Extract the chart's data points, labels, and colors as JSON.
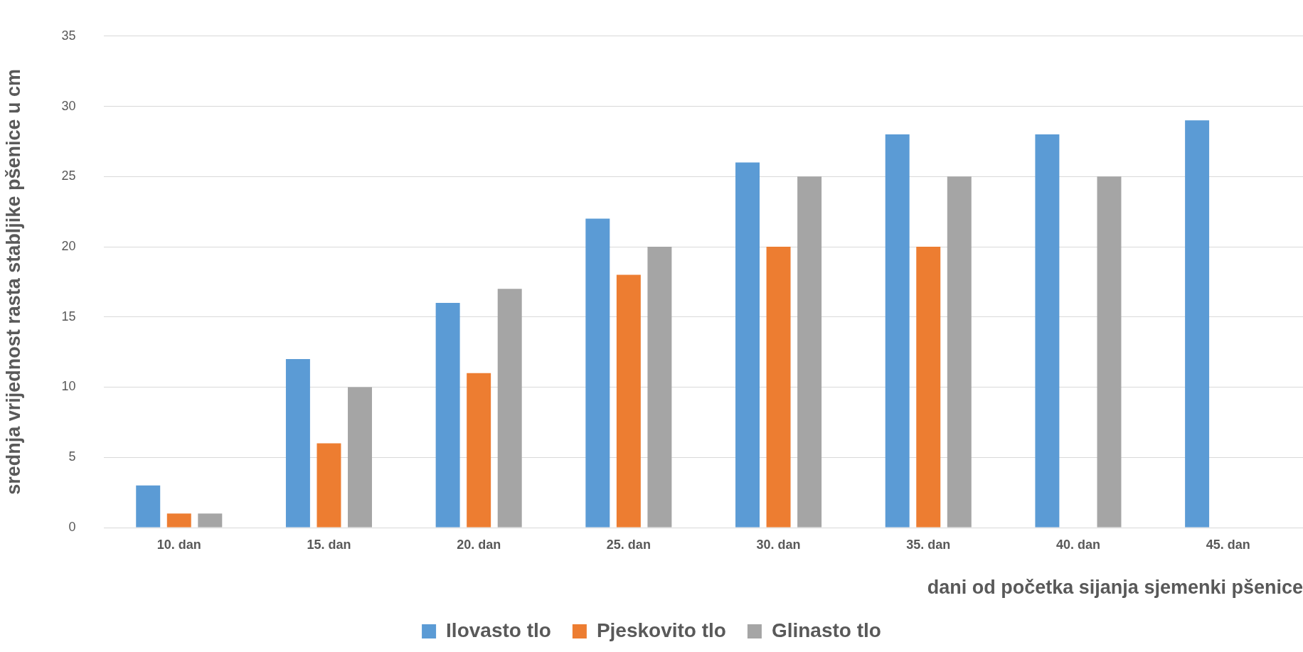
{
  "chart_data": {
    "type": "bar",
    "xlabel": "dani od početka sijanja sjemenki pšenice",
    "ylabel": "srednja vrijednost rasta stabljike pšenice u cm",
    "categories": [
      "10. dan",
      "15. dan",
      "20. dan",
      "25. dan",
      "30. dan",
      "35. dan",
      "40. dan",
      "45. dan"
    ],
    "series": [
      {
        "name": "Ilovasto tlo",
        "color": "#5b9bd5",
        "values": [
          3,
          12,
          16,
          22,
          26,
          28,
          28,
          29
        ]
      },
      {
        "name": "Pjeskovito tlo",
        "color": "#ed7d31",
        "values": [
          1,
          6,
          11,
          18,
          20,
          20,
          null,
          null
        ]
      },
      {
        "name": "Glinasto tlo",
        "color": "#a5a5a5",
        "values": [
          1,
          10,
          17,
          20,
          25,
          25,
          25,
          null
        ]
      }
    ],
    "ylim": [
      0,
      35
    ],
    "yticks": [
      0,
      5,
      10,
      15,
      20,
      25,
      30,
      35
    ],
    "grid": "y",
    "legend": "bottom"
  }
}
